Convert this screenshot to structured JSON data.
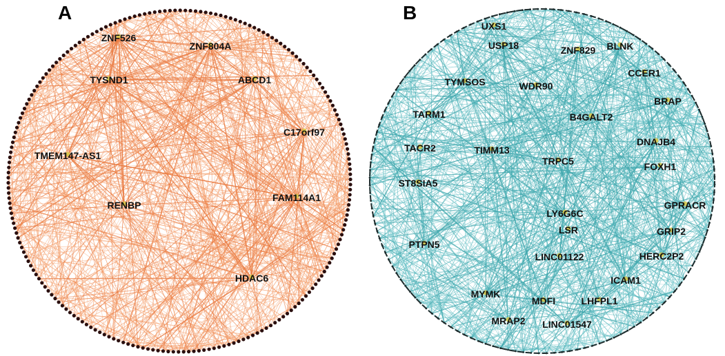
{
  "panels": [
    {
      "letter": "A",
      "edge_color": "#f4a06e",
      "hub_edge_color": "#ea7d45",
      "node_color": "#2a0f0f",
      "hub_marker_color": "#d8c94a",
      "hubs": [
        "ZNF526",
        "ZNF804A",
        "TYSND1",
        "ABCD1",
        "C17orf97",
        "TMEM147-AS1",
        "RENBP",
        "FAM114A1",
        "HDAC6"
      ]
    },
    {
      "letter": "B",
      "edge_color": "#6cc3c8",
      "hub_edge_color": "#3fa7ad",
      "node_color": "#1c2b2c",
      "hub_marker_color": "#d8c94a",
      "hubs": [
        "UXS1",
        "USP18",
        "ZNF829",
        "BLNK",
        "CCER1",
        "TYMSOS",
        "WDR90",
        "BRAP",
        "TARM1",
        "B4GALT2",
        "DNAJB4",
        "TACR2",
        "TIMM13",
        "TRPC5",
        "FOXH1",
        "ST8SIA5",
        "GPRACR",
        "LY6G6C",
        "LSR",
        "GRIP2",
        "PTPN5",
        "HERC2P2",
        "LINC01122",
        "ICAM1",
        "MYMK",
        "MDFI",
        "LHFPL1",
        "MRAP2",
        "LINC01547"
      ]
    }
  ]
}
